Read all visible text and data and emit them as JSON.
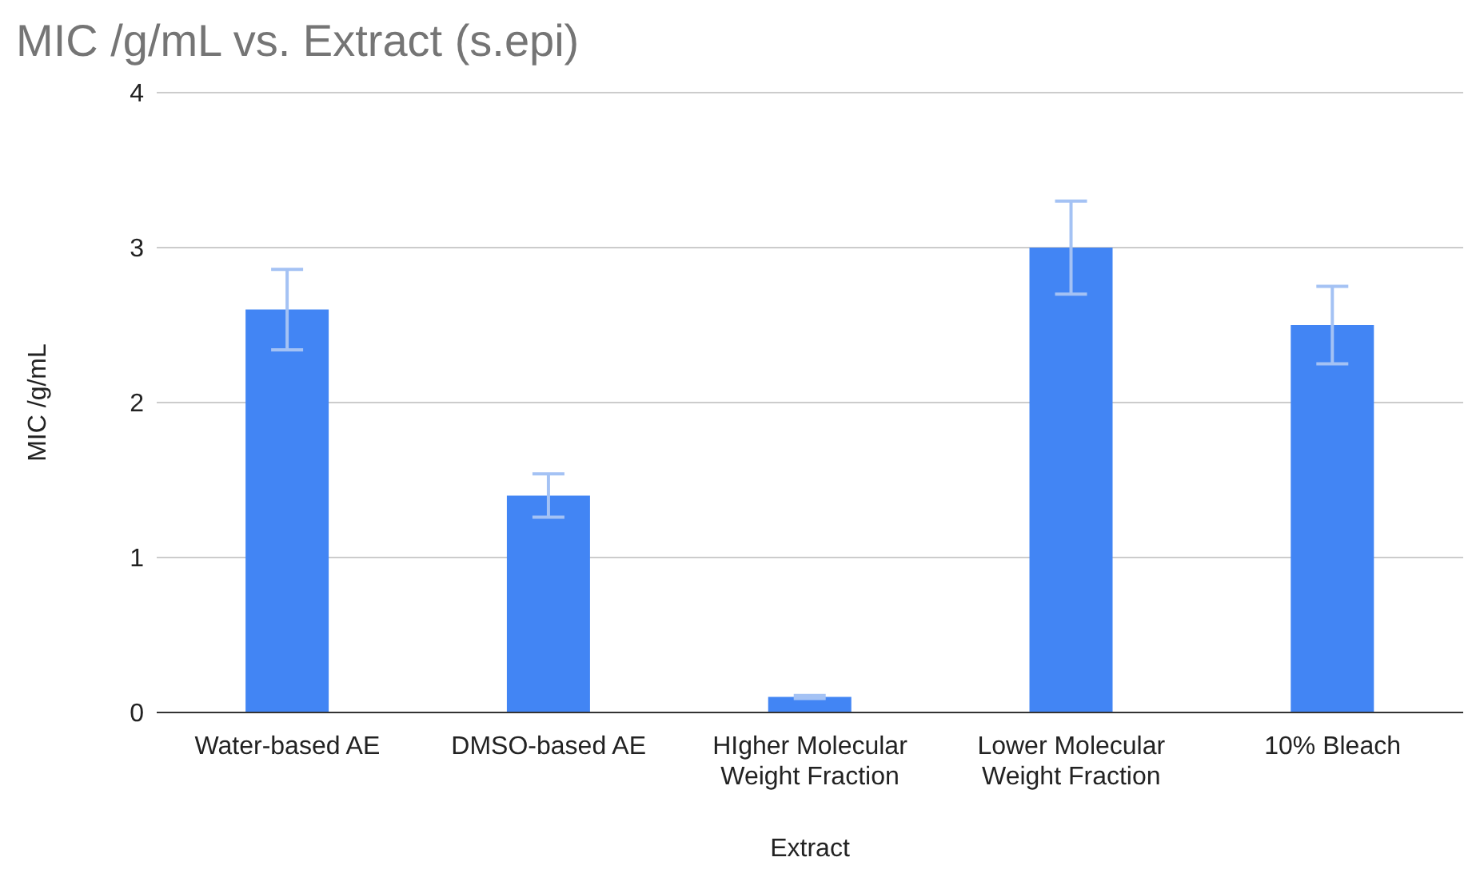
{
  "chart_data": {
    "type": "bar",
    "title": "MIC /g/mL vs. Extract (s.epi)",
    "xlabel": "Extract",
    "ylabel": "MIC /g/mL",
    "categories": [
      "Water-based AE",
      "DMSO-based AE",
      "HIgher Molecular Weight Fraction",
      "Lower Molecular Weight Fraction",
      "10% Bleach"
    ],
    "values": [
      2.6,
      1.4,
      0.1,
      3.0,
      2.5
    ],
    "errors": [
      0.26,
      0.14,
      0.01,
      0.3,
      0.25
    ],
    "color": "#4285f4",
    "ylim": [
      0,
      4
    ],
    "yticks": [
      0,
      1,
      2,
      3,
      4
    ],
    "grid": "y",
    "legend": false
  }
}
